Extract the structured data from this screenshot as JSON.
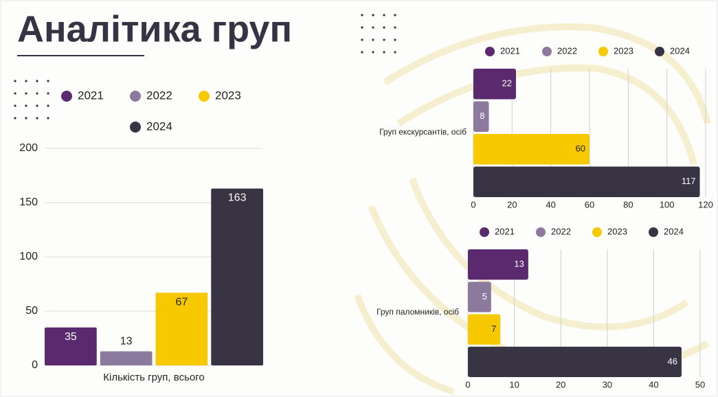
{
  "title": "Аналітика груп",
  "chart_data": [
    {
      "type": "bar",
      "orientation": "vertical",
      "categories": [
        "Кількість груп, всього"
      ],
      "series": [
        {
          "name": "2021",
          "color": "#5b2a6e",
          "values": [
            35
          ]
        },
        {
          "name": "2022",
          "color": "#8c7a9e",
          "values": [
            13
          ]
        },
        {
          "name": "2023",
          "color": "#f7c900",
          "values": [
            67
          ]
        },
        {
          "name": "2024",
          "color": "#383444",
          "values": [
            163
          ]
        }
      ],
      "ylim": [
        0,
        200
      ],
      "yticks": [
        0,
        50,
        100,
        150,
        200
      ],
      "grid": true
    },
    {
      "type": "bar",
      "orientation": "horizontal",
      "categories": [
        "Груп екскурсантів, осіб"
      ],
      "series": [
        {
          "name": "2021",
          "color": "#5b2a6e",
          "values": [
            22
          ]
        },
        {
          "name": "2022",
          "color": "#8c7a9e",
          "values": [
            8
          ]
        },
        {
          "name": "2023",
          "color": "#f7c900",
          "values": [
            60
          ]
        },
        {
          "name": "2024",
          "color": "#383444",
          "values": [
            117
          ]
        }
      ],
      "xlim": [
        0,
        120
      ],
      "xticks": [
        0,
        20,
        40,
        60,
        80,
        100,
        120
      ],
      "grid": true
    },
    {
      "type": "bar",
      "orientation": "horizontal",
      "categories": [
        "Груп паломників, осіб"
      ],
      "series": [
        {
          "name": "2021",
          "color": "#5b2a6e",
          "values": [
            13
          ]
        },
        {
          "name": "2022",
          "color": "#8c7a9e",
          "values": [
            5
          ]
        },
        {
          "name": "2023",
          "color": "#f7c900",
          "values": [
            7
          ]
        },
        {
          "name": "2024",
          "color": "#383444",
          "values": [
            46
          ]
        }
      ],
      "xlim": [
        0,
        50
      ],
      "xticks": [
        0,
        10,
        20,
        30,
        40,
        50
      ],
      "grid": true
    }
  ]
}
